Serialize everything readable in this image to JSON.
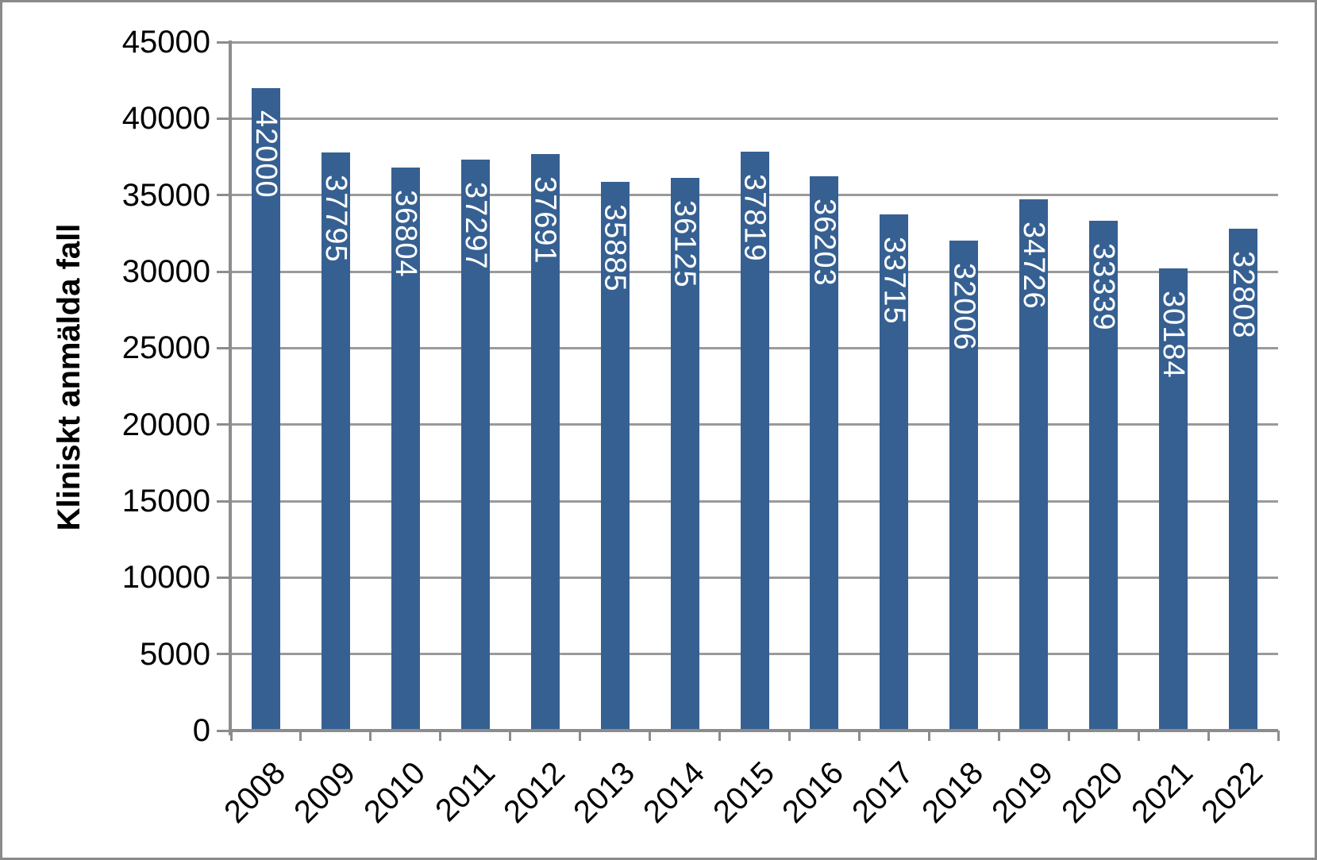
{
  "chart_data": {
    "type": "bar",
    "title": "",
    "categories": [
      "2008",
      "2009",
      "2010",
      "2011",
      "2012",
      "2013",
      "2014",
      "2015",
      "2016",
      "2017",
      "2018",
      "2019",
      "2020",
      "2021",
      "2022"
    ],
    "values": [
      42000,
      37795,
      36804,
      37297,
      37691,
      35885,
      36125,
      37819,
      36203,
      33715,
      32006,
      34726,
      33339,
      30184,
      32808
    ],
    "ylabel": "Kliniskt anmälda fall",
    "xlabel": "",
    "ylim": [
      0,
      45000
    ],
    "ytick_step": 5000,
    "yticks": [
      0,
      5000,
      10000,
      15000,
      20000,
      25000,
      30000,
      35000,
      40000,
      45000
    ],
    "grid": "horizontal",
    "legend_position": "none",
    "data_labels": {
      "position": "inside-end",
      "orientation": "rotated-90-clockwise",
      "color": "#ffffff"
    },
    "colors": {
      "bar": "#366092",
      "gridline": "#9a9a9a",
      "axis": "#8c8c8c",
      "frame": "#8a8a8a",
      "text": "#000000",
      "background": "#ffffff"
    }
  }
}
